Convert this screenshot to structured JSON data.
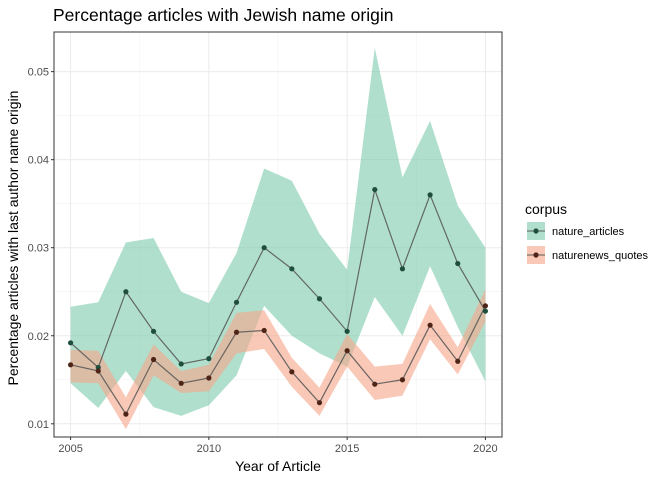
{
  "chart_data": {
    "type": "line",
    "title": "Percentage articles with Jewish name origin",
    "xlabel": "Year of Article",
    "ylabel": "Percentage articles with last author name origin",
    "xlim": [
      2004.4,
      2020.6
    ],
    "ylim": [
      0.0085,
      0.0545
    ],
    "x_ticks": [
      2005,
      2010,
      2015,
      2020
    ],
    "x_tick_labels": [
      "2005",
      "2010",
      "2015",
      "2020"
    ],
    "y_ticks": [
      0.01,
      0.02,
      0.03,
      0.04,
      0.05
    ],
    "y_tick_labels": [
      "0.01",
      "0.02",
      "0.03",
      "0.04",
      "0.05"
    ],
    "grid": true,
    "legend": {
      "title": "corpus",
      "position": "right"
    },
    "x": [
      2005,
      2006,
      2007,
      2008,
      2009,
      2010,
      2011,
      2012,
      2013,
      2014,
      2015,
      2016,
      2017,
      2018,
      2019,
      2020
    ],
    "series": [
      {
        "name": "nature_articles",
        "color": "#1b9e77",
        "fill": "#7fcdae",
        "values": [
          0.0192,
          0.0164,
          0.025,
          0.0205,
          0.0168,
          0.0174,
          0.0238,
          0.03,
          0.0276,
          0.0242,
          0.0205,
          0.0366,
          0.0276,
          0.036,
          0.0282,
          0.0228
        ],
        "lower": [
          0.0146,
          0.0118,
          0.016,
          0.0119,
          0.0109,
          0.0121,
          0.0155,
          0.0234,
          0.02,
          0.018,
          0.0165,
          0.0244,
          0.02,
          0.0279,
          0.021,
          0.0148
        ],
        "upper": [
          0.0233,
          0.0238,
          0.0306,
          0.0311,
          0.025,
          0.0237,
          0.0294,
          0.039,
          0.0376,
          0.0316,
          0.0275,
          0.0527,
          0.038,
          0.0444,
          0.0348,
          0.03
        ]
      },
      {
        "name": "naturenews_quotes",
        "color": "#d95f02",
        "fill": "#f5a78a",
        "values": [
          0.0167,
          0.016,
          0.0111,
          0.0173,
          0.0146,
          0.0152,
          0.0204,
          0.0206,
          0.0159,
          0.0124,
          0.0183,
          0.0145,
          0.015,
          0.0212,
          0.0171,
          0.0234
        ],
        "lower": [
          0.0147,
          0.0146,
          0.0094,
          0.0155,
          0.0135,
          0.0137,
          0.018,
          0.0185,
          0.0142,
          0.0109,
          0.0165,
          0.0127,
          0.0132,
          0.0196,
          0.0156,
          0.0216
        ],
        "upper": [
          0.0184,
          0.0183,
          0.013,
          0.019,
          0.016,
          0.0167,
          0.0226,
          0.0229,
          0.0175,
          0.0141,
          0.0202,
          0.0165,
          0.0168,
          0.0236,
          0.0187,
          0.0253
        ]
      }
    ]
  }
}
